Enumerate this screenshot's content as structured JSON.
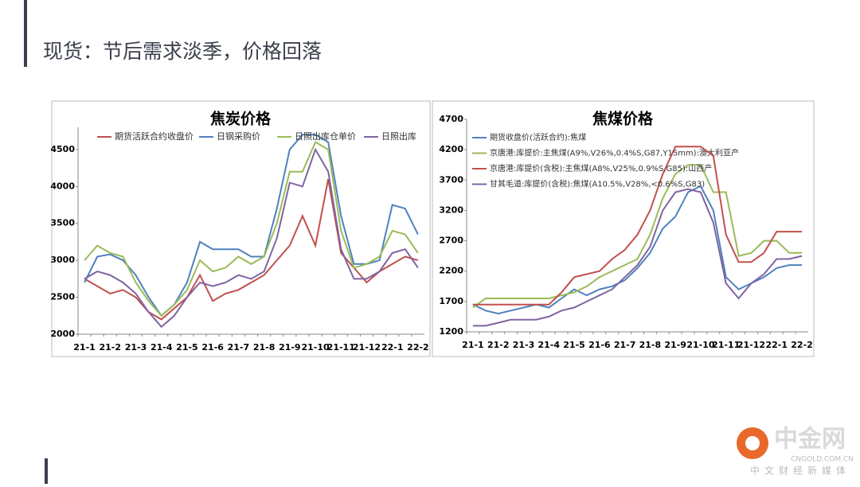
{
  "slide_title": "现货：节后需求淡季，价格回落",
  "logo": {
    "name": "中金网",
    "domain": "CNGOLD.COM.CN",
    "slogan": "中文财经新媒体"
  },
  "chart_data": [
    {
      "type": "line",
      "title": "焦炭价格",
      "categories": [
        "21-1",
        null,
        "21-2",
        null,
        "21-3",
        null,
        "21-4",
        null,
        "21-5",
        null,
        "21-6",
        null,
        "21-7",
        null,
        "21-8",
        null,
        "21-9",
        null,
        "21-10",
        null,
        "21-11",
        null,
        "21-12",
        null,
        "22-1",
        null,
        "22-2"
      ],
      "ylim": [
        2000,
        4800
      ],
      "yticks": [
        2000,
        2500,
        3000,
        3500,
        4000,
        4500
      ],
      "grid": false,
      "legend": "top",
      "series": [
        {
          "name": "期货活跃合约收盘价",
          "color": "#c0504d",
          "values": [
            2750,
            2650,
            2550,
            2600,
            2500,
            2300,
            2200,
            2350,
            2500,
            2800,
            2450,
            2550,
            2600,
            2700,
            2800,
            3000,
            3200,
            3600,
            3200,
            4100,
            3100,
            2900,
            2700,
            2850,
            2950,
            3050,
            3000
          ]
        },
        {
          "name": "日钢采购价",
          "color": "#4f81bd",
          "values": [
            2700,
            3050,
            3080,
            3000,
            2800,
            2500,
            2250,
            2400,
            2700,
            3250,
            3150,
            3150,
            3150,
            3050,
            3050,
            3700,
            4500,
            4700,
            4700,
            4600,
            3600,
            2950,
            2950,
            3000,
            3750,
            3700,
            3350
          ]
        },
        {
          "name": "日照出库仓单价",
          "color": "#9bbb59",
          "values": [
            3000,
            3200,
            3100,
            3050,
            2700,
            2450,
            2250,
            2400,
            2600,
            3000,
            2850,
            2900,
            3050,
            2950,
            3050,
            3500,
            4200,
            4200,
            4600,
            4500,
            3400,
            2900,
            2950,
            3050,
            3400,
            3350,
            3100
          ]
        },
        {
          "name": "日照出库",
          "color": "#8064a2",
          "values": [
            2750,
            2850,
            2800,
            2700,
            2550,
            2300,
            2100,
            2250,
            2500,
            2700,
            2650,
            2700,
            2800,
            2750,
            2850,
            3300,
            4050,
            4000,
            4500,
            4200,
            3150,
            2750,
            2750,
            2850,
            3100,
            3150,
            2900
          ]
        }
      ]
    },
    {
      "type": "line",
      "title": "焦煤价格",
      "categories": [
        "21-1",
        null,
        "21-2",
        null,
        "21-3",
        null,
        "21-4",
        null,
        "21-5",
        null,
        "21-6",
        null,
        "21-7",
        null,
        "21-8",
        null,
        "21-9",
        null,
        "21-10",
        null,
        "21-11",
        null,
        "21-12",
        null,
        "22-1",
        null,
        "22-2"
      ],
      "ylim": [
        1200,
        4700
      ],
      "yticks": [
        1200,
        1700,
        2200,
        2700,
        3200,
        3700,
        4200,
        4700
      ],
      "grid": false,
      "legend": "top-left",
      "series": [
        {
          "name": "期货收盘价(活跃合约):焦煤",
          "color": "#4f81bd",
          "values": [
            1650,
            1550,
            1500,
            1550,
            1600,
            1650,
            1600,
            1750,
            1900,
            1800,
            1900,
            1950,
            2050,
            2250,
            2500,
            2900,
            3100,
            3500,
            3600,
            3200,
            2100,
            1900,
            2000,
            2100,
            2250,
            2300,
            2300
          ]
        },
        {
          "name": "京唐港:库提价:主焦煤(A9%,V26%,0.4%S,G87,Y15mm):澳大利亚产",
          "color": "#9bbb59",
          "values": [
            1600,
            1750,
            1750,
            1750,
            1750,
            1750,
            1750,
            1800,
            1850,
            1950,
            2100,
            2200,
            2300,
            2400,
            2800,
            3400,
            3800,
            3950,
            3950,
            3500,
            3500,
            2450,
            2500,
            2700,
            2700,
            2500,
            2500
          ]
        },
        {
          "name": "京唐港:库提价(含税):主焦煤(A8%,V25%,0.9%S,G85):山西产",
          "color": "#c0504d",
          "values": [
            1650,
            1650,
            1650,
            1650,
            1650,
            1650,
            1650,
            1850,
            2100,
            2150,
            2200,
            2400,
            2550,
            2800,
            3200,
            3800,
            4250,
            4250,
            4250,
            4100,
            2800,
            2350,
            2350,
            2500,
            2850,
            2850,
            2850
          ]
        },
        {
          "name": "甘其毛道:库提价(含税):焦煤(A10.5%,V28%,<0.6%S,G83)",
          "color": "#8064a2",
          "values": [
            1300,
            1300,
            1350,
            1400,
            1400,
            1400,
            1450,
            1550,
            1600,
            1700,
            1800,
            1900,
            2100,
            2300,
            2600,
            3200,
            3500,
            3550,
            3500,
            3000,
            2000,
            1750,
            2000,
            2150,
            2400,
            2400,
            2450
          ]
        }
      ]
    }
  ]
}
